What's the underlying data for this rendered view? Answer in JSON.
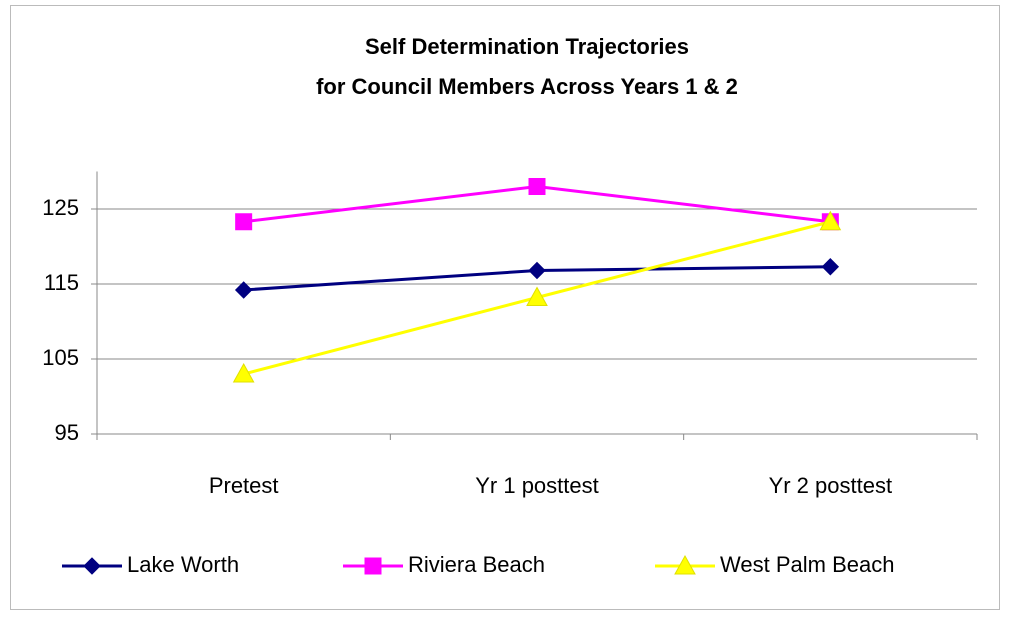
{
  "chart_data": {
    "type": "line",
    "title": [
      "Self Determination Trajectories",
      "for Council Members Across Years 1 & 2"
    ],
    "categories": [
      "Pretest",
      "Yr 1 posttest",
      "Yr 2 posttest"
    ],
    "series": [
      {
        "name": "Lake Worth",
        "color": "#000080",
        "marker": "diamond",
        "values": [
          114.2,
          116.8,
          117.3
        ]
      },
      {
        "name": "Riviera Beach",
        "color": "#FF00FF",
        "marker": "square",
        "values": [
          123.3,
          128,
          123.3
        ]
      },
      {
        "name": "West Palm Beach",
        "color": "#FFFF00",
        "marker": "triangle",
        "values": [
          103,
          113.2,
          123.3
        ]
      }
    ],
    "ylim": [
      95,
      130
    ],
    "yticks": [
      95,
      105,
      115,
      125
    ],
    "grid": true,
    "legend": "bottom"
  }
}
